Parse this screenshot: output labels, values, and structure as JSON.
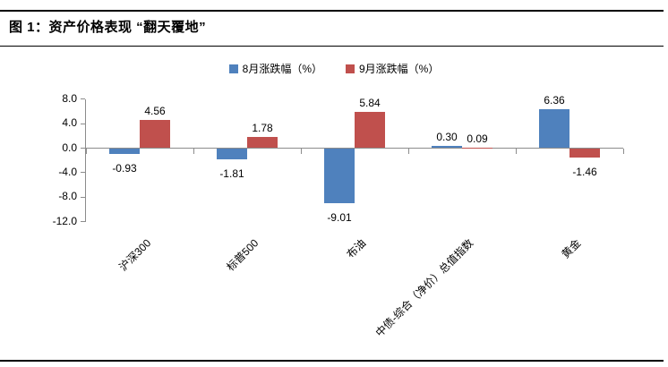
{
  "header": {
    "title": "图 1：资产价格表现 “翻天覆地”"
  },
  "chart_data": {
    "type": "bar",
    "title": "图 1：资产价格表现 “翻天覆地”",
    "categories": [
      "沪深300",
      "标普500",
      "布油",
      "中债-综合（净价）总值指数",
      "黄金"
    ],
    "series": [
      {
        "name": "8月涨跌幅（%）",
        "color": "#4F81BD",
        "values": [
          -0.93,
          -1.81,
          -9.01,
          0.3,
          6.36
        ],
        "labels": [
          "-0.93",
          "-1.81",
          "-9.01",
          "0.30",
          "6.36"
        ]
      },
      {
        "name": "9月涨跌幅（%）",
        "color": "#C0504D",
        "values": [
          4.56,
          1.78,
          5.84,
          0.09,
          -1.46
        ],
        "labels": [
          "4.56",
          "1.78",
          "5.84",
          "0.09",
          "-1.46"
        ]
      }
    ],
    "xlabel": "",
    "ylabel": "",
    "y_tick_labels": [
      "8.0",
      "4.0",
      "0.0",
      "-4.0",
      "-8.0",
      "-12.0"
    ],
    "y_tick_values": [
      8,
      4,
      0,
      -4,
      -8,
      -12
    ],
    "ylim": [
      -12,
      8
    ],
    "legend_position": "top-center",
    "grid": false,
    "axis_color": "#8c8c8c",
    "label_color": "#000000"
  }
}
